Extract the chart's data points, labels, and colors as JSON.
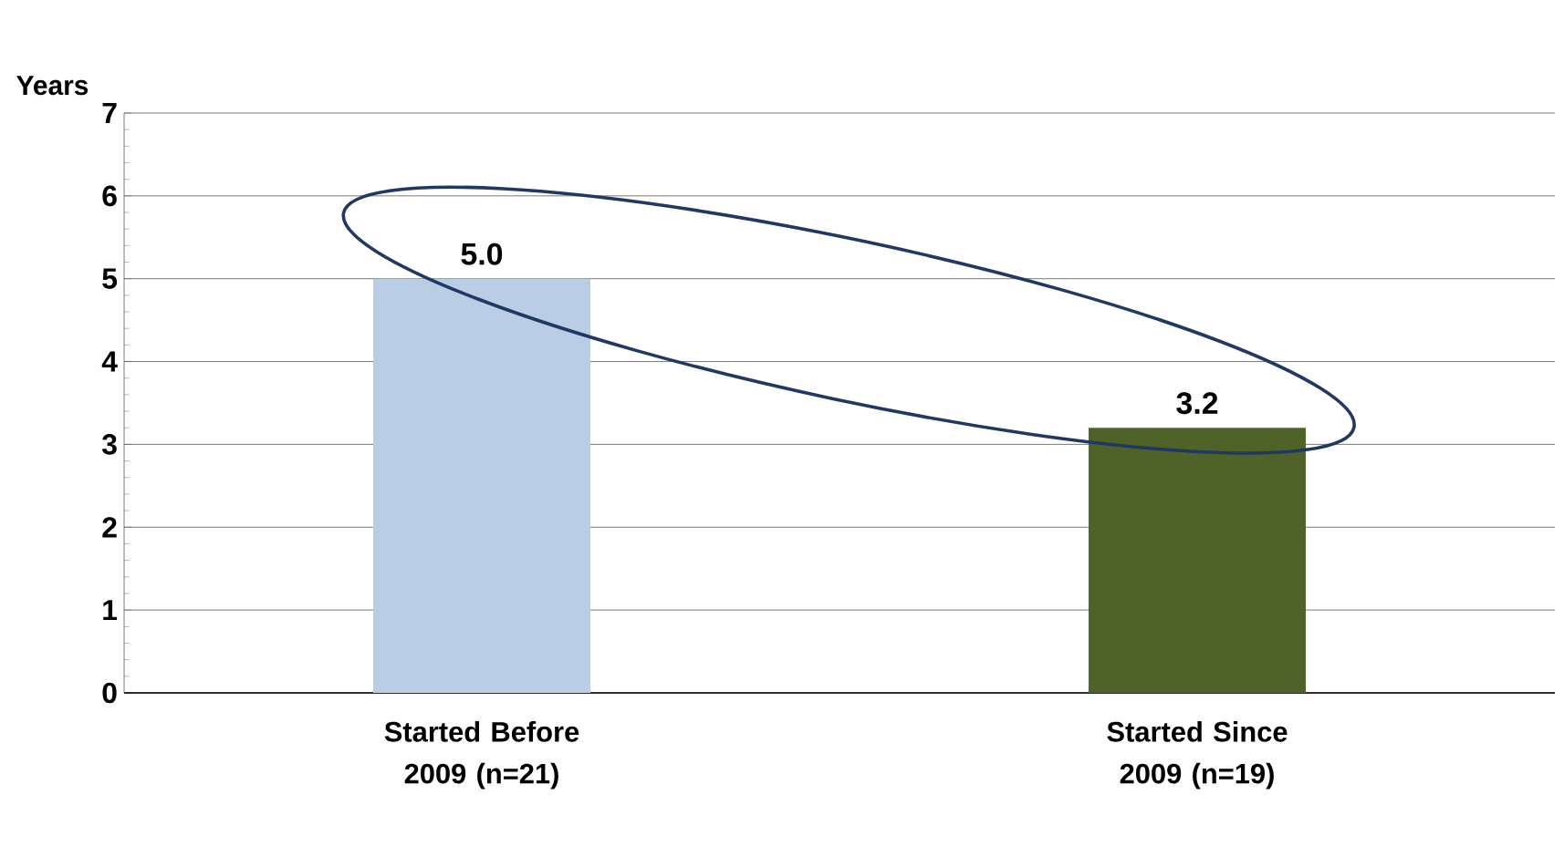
{
  "chart_data": {
    "type": "bar",
    "ylabel": "Years",
    "categories": [
      "Started Before 2009 (n=21)",
      "Started Since 2009 (n=19)"
    ],
    "values": [
      5.0,
      3.2
    ],
    "colors": [
      "#b9cde5",
      "#4f6228"
    ],
    "value_labels": [
      "5.0",
      "3.2"
    ],
    "ylim": [
      0,
      7
    ],
    "yticks": [
      0,
      1,
      2,
      3,
      4,
      5,
      6,
      7
    ],
    "grid": "y"
  }
}
